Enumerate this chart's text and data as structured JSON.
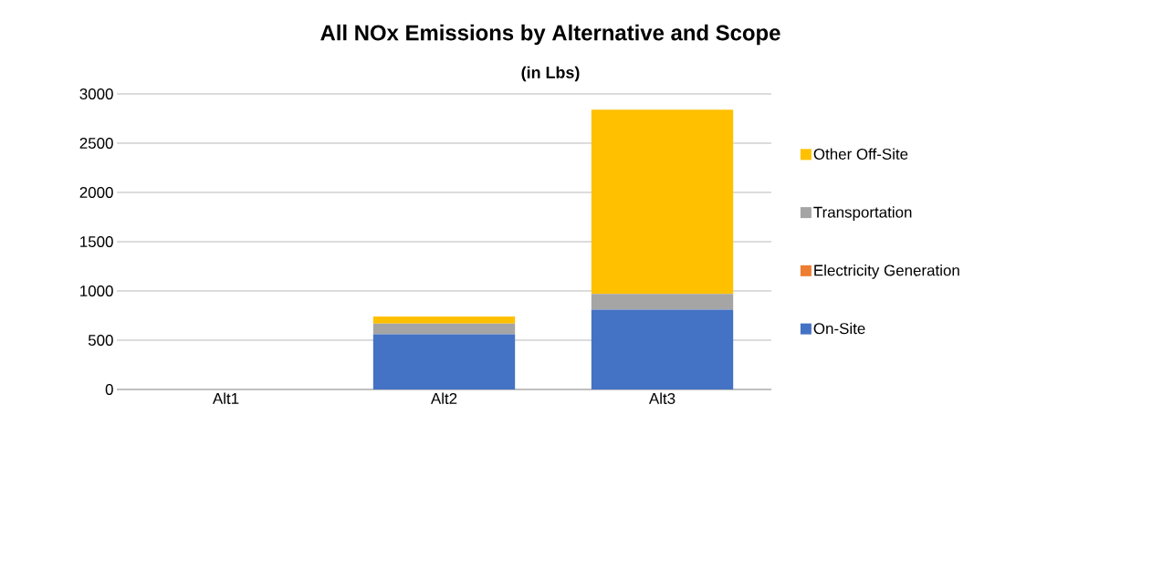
{
  "chart_data": {
    "type": "bar",
    "title": "All NOx Emissions by Alternative and Scope",
    "subtitle": "(in Lbs)",
    "categories": [
      "Alt1",
      "Alt2",
      "Alt3"
    ],
    "stacked": true,
    "series": [
      {
        "name": "On-Site",
        "color": "#4472c4",
        "values": [
          0,
          560,
          810
        ]
      },
      {
        "name": "Electricity Generation",
        "color": "#ed7d31",
        "values": [
          0,
          0,
          0
        ]
      },
      {
        "name": "Transportation",
        "color": "#a5a5a5",
        "values": [
          0,
          110,
          160
        ]
      },
      {
        "name": "Other Off-Site",
        "color": "#ffc000",
        "values": [
          0,
          70,
          1870
        ]
      }
    ],
    "ylim": [
      0,
      3000
    ],
    "yticks": [
      0,
      500,
      1000,
      1500,
      2000,
      2500,
      3000
    ],
    "grid": "y",
    "legend": "right"
  }
}
